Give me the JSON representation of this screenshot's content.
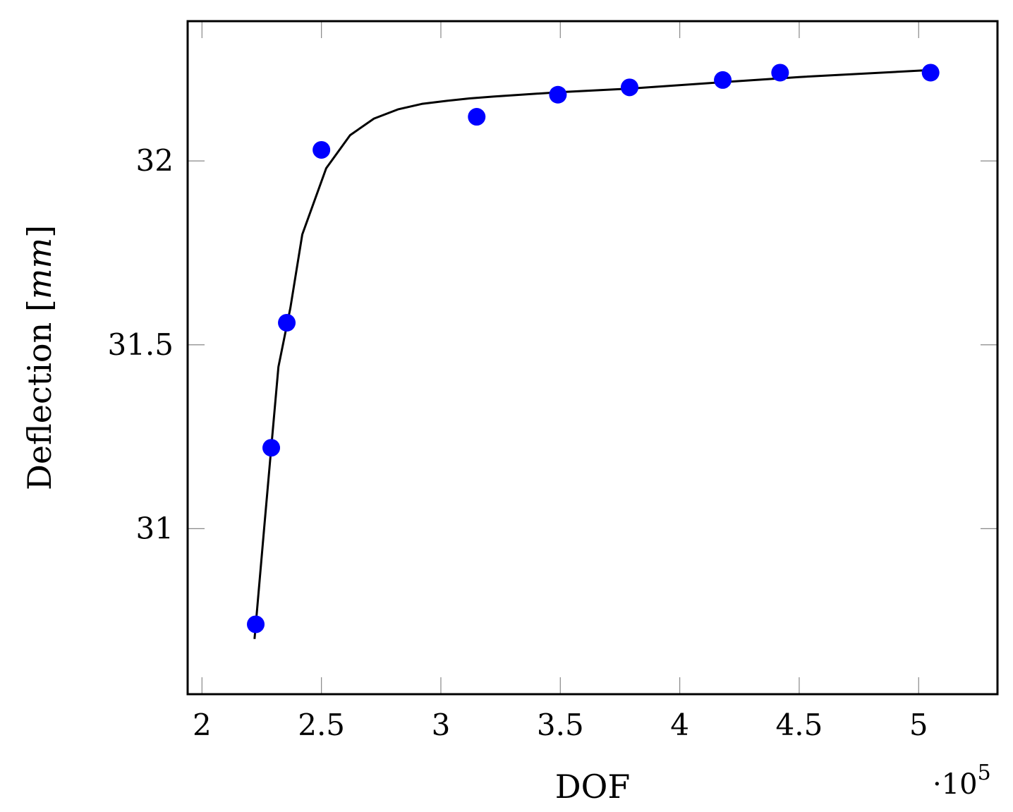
{
  "chart_data": {
    "type": "scatter",
    "xlabel": "DOF",
    "ylabel_prefix": "Deflection [",
    "ylabel_unit": "mm",
    "ylabel_suffix": "]",
    "x_multiplier_dot": "·10",
    "x_multiplier_exp": "5",
    "xlim": [
      1.94,
      5.33
    ],
    "ylim": [
      30.55,
      32.38
    ],
    "x_ticks": [
      2,
      2.5,
      3,
      3.5,
      4,
      4.5,
      5
    ],
    "x_tick_labels": [
      "2",
      "2.5",
      "3",
      "3.5",
      "4",
      "4.5",
      "5"
    ],
    "y_ticks": [
      31,
      31.5,
      32
    ],
    "y_tick_labels": [
      "31",
      "31.5",
      "32"
    ],
    "grid": false,
    "series": [
      {
        "type": "line",
        "color": "#000000",
        "x": [
          2.22,
          2.26,
          2.29,
          2.32,
          2.37,
          2.42,
          2.52,
          2.62,
          2.72,
          2.82,
          2.92,
          3.02,
          3.12,
          3.22,
          3.5,
          3.8,
          4.2,
          4.5,
          5.05
        ],
        "y": [
          30.7,
          31.0,
          31.22,
          31.44,
          31.6,
          31.8,
          31.98,
          32.07,
          32.115,
          32.14,
          32.155,
          32.163,
          32.17,
          32.175,
          32.187,
          32.197,
          32.215,
          32.228,
          32.247
        ]
      },
      {
        "type": "scatter",
        "color": "#0000ff",
        "x": [
          2.225,
          2.29,
          2.355,
          2.5,
          3.15,
          3.49,
          3.79,
          4.18,
          4.42,
          5.05
        ],
        "y": [
          30.74,
          31.22,
          31.56,
          32.03,
          32.12,
          32.18,
          32.2,
          32.22,
          32.24,
          32.24
        ]
      }
    ]
  }
}
